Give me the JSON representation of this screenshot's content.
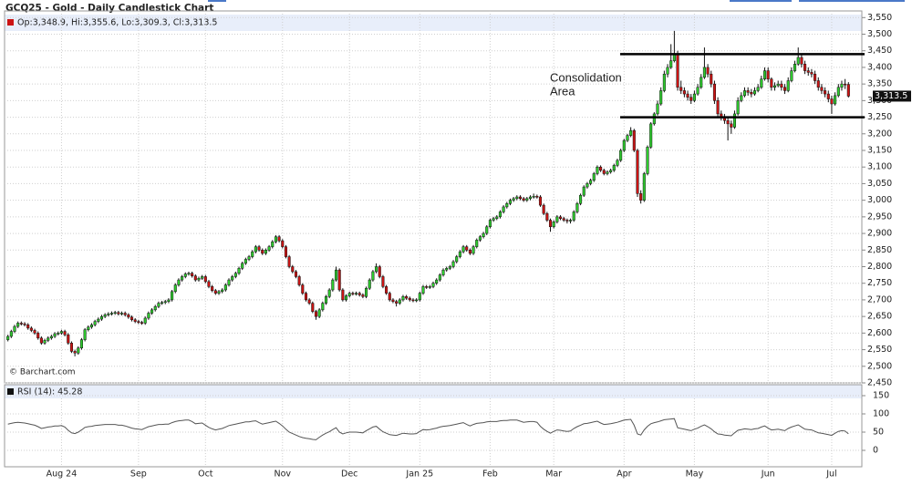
{
  "chart_data": {
    "type": "candlestick",
    "title": "GCQ25 - Gold - Daily Candlestick Chart",
    "quote": "Op:3,348.9, Hi:3,355.6, Lo:3,309.3, Cl:3,313.5",
    "source": "© Barchart.com",
    "up_color": "#2ecc2e",
    "down_color": "#cc1414",
    "grid": true,
    "ylim": [
      2450,
      3570
    ],
    "yticks": [
      {
        "value": 2450,
        "label": "2,450"
      },
      {
        "value": 2500,
        "label": "2,500"
      },
      {
        "value": 2550,
        "label": "2,550"
      },
      {
        "value": 2600,
        "label": "2,600"
      },
      {
        "value": 2650,
        "label": "2,650"
      },
      {
        "value": 2700,
        "label": "2,700"
      },
      {
        "value": 2750,
        "label": "2,750"
      },
      {
        "value": 2800,
        "label": "2,800"
      },
      {
        "value": 2850,
        "label": "2,850"
      },
      {
        "value": 2900,
        "label": "2,900"
      },
      {
        "value": 2950,
        "label": "2,950"
      },
      {
        "value": 3000,
        "label": "3,000"
      },
      {
        "value": 3050,
        "label": "3,050"
      },
      {
        "value": 3100,
        "label": "3,100"
      },
      {
        "value": 3150,
        "label": "3,150"
      },
      {
        "value": 3200,
        "label": "3,200"
      },
      {
        "value": 3250,
        "label": "3,250"
      },
      {
        "value": 3300,
        "label": "3,300"
      },
      {
        "value": 3350,
        "label": "3,350"
      },
      {
        "value": 3400,
        "label": "3,400"
      },
      {
        "value": 3450,
        "label": "3,450"
      },
      {
        "value": 3500,
        "label": "3,500"
      },
      {
        "value": 3550,
        "label": "3,550"
      }
    ],
    "xlim": [
      -1,
      255
    ],
    "xticks": [
      {
        "value": 16,
        "label": "Aug 24"
      },
      {
        "value": 39,
        "label": "Sep"
      },
      {
        "value": 59,
        "label": "Oct"
      },
      {
        "value": 82,
        "label": "Nov"
      },
      {
        "value": 102,
        "label": "Dec"
      },
      {
        "value": 123,
        "label": "Jan 25"
      },
      {
        "value": 144,
        "label": "Feb"
      },
      {
        "value": 163,
        "label": "Mar"
      },
      {
        "value": 184,
        "label": "Apr"
      },
      {
        "value": 205,
        "label": "May"
      },
      {
        "value": 227,
        "label": "Jun"
      },
      {
        "value": 246,
        "label": "Jul"
      }
    ],
    "last_price": {
      "value": 3313.5,
      "label": "3,313.5"
    },
    "annotation": {
      "text": [
        "Consolidation",
        "Area"
      ],
      "levels": [
        3440,
        3250
      ]
    },
    "open": [
      2580,
      2590,
      2605,
      2620,
      2630,
      2628,
      2625,
      2615,
      2608,
      2600,
      2585,
      2570,
      2578,
      2585,
      2590,
      2598,
      2600,
      2605,
      2595,
      2570,
      2545,
      2540,
      2555,
      2580,
      2610,
      2618,
      2625,
      2635,
      2642,
      2650,
      2655,
      2658,
      2660,
      2662,
      2658,
      2660,
      2655,
      2648,
      2640,
      2635,
      2632,
      2630,
      2645,
      2660,
      2670,
      2680,
      2690,
      2692,
      2695,
      2700,
      2725,
      2745,
      2760,
      2770,
      2778,
      2780,
      2772,
      2760,
      2765,
      2770,
      2755,
      2740,
      2728,
      2720,
      2725,
      2730,
      2745,
      2760,
      2770,
      2780,
      2795,
      2810,
      2822,
      2830,
      2845,
      2860,
      2850,
      2840,
      2850,
      2860,
      2875,
      2890,
      2878,
      2860,
      2830,
      2800,
      2785,
      2770,
      2745,
      2720,
      2700,
      2690,
      2665,
      2650,
      2670,
      2690,
      2710,
      2730,
      2760,
      2790,
      2730,
      2700,
      2712,
      2720,
      2718,
      2720,
      2715,
      2710,
      2735,
      2760,
      2785,
      2800,
      2770,
      2740,
      2720,
      2700,
      2695,
      2690,
      2700,
      2710,
      2705,
      2700,
      2698,
      2700,
      2720,
      2740,
      2738,
      2740,
      2750,
      2760,
      2775,
      2790,
      2795,
      2800,
      2815,
      2830,
      2845,
      2860,
      2850,
      2840,
      2860,
      2880,
      2890,
      2900,
      2920,
      2940,
      2945,
      2950,
      2965,
      2980,
      2990,
      3000,
      3005,
      3010,
      3005,
      3000,
      3005,
      3010,
      3012,
      3010,
      2985,
      2960,
      2940,
      2920,
      2935,
      2950,
      2945,
      2940,
      2938,
      2940,
      2965,
      2990,
      3015,
      3040,
      3050,
      3060,
      3080,
      3100,
      3090,
      3080,
      3085,
      3090,
      3105,
      3120,
      3150,
      3180,
      3195,
      3210,
      3150,
      3020,
      3000,
      3080,
      3160,
      3230,
      3260,
      3290,
      3330,
      3380,
      3400,
      3420,
      3440,
      3340,
      3330,
      3320,
      3310,
      3300,
      3320,
      3340,
      3370,
      3400,
      3380,
      3350,
      3300,
      3260,
      3250,
      3240,
      3230,
      3220,
      3260,
      3300,
      3315,
      3330,
      3325,
      3320,
      3330,
      3340,
      3365,
      3390,
      3365,
      3340,
      3345,
      3350,
      3340,
      3330,
      3360,
      3390,
      3410,
      3430,
      3410,
      3390,
      3385,
      3380,
      3360,
      3340,
      3330,
      3320,
      3305,
      3290,
      3315,
      3340,
      3350,
      3348.9
    ],
    "high": [
      2595,
      2610,
      2625,
      2635,
      2635,
      2633,
      2630,
      2620,
      2613,
      2605,
      2590,
      2583,
      2590,
      2595,
      2603,
      2605,
      2610,
      2610,
      2600,
      2575,
      2550,
      2560,
      2585,
      2615,
      2623,
      2630,
      2640,
      2647,
      2655,
      2660,
      2663,
      2665,
      2667,
      2667,
      2665,
      2665,
      2660,
      2653,
      2645,
      2640,
      2637,
      2650,
      2665,
      2675,
      2685,
      2695,
      2697,
      2700,
      2705,
      2730,
      2750,
      2765,
      2775,
      2783,
      2785,
      2785,
      2777,
      2770,
      2775,
      2775,
      2760,
      2745,
      2733,
      2730,
      2735,
      2750,
      2765,
      2775,
      2785,
      2800,
      2815,
      2827,
      2835,
      2850,
      2865,
      2865,
      2855,
      2855,
      2865,
      2880,
      2895,
      2895,
      2883,
      2865,
      2835,
      2805,
      2790,
      2775,
      2750,
      2725,
      2705,
      2695,
      2670,
      2675,
      2695,
      2715,
      2735,
      2765,
      2800,
      2795,
      2735,
      2717,
      2725,
      2725,
      2725,
      2725,
      2720,
      2740,
      2765,
      2790,
      2810,
      2805,
      2775,
      2745,
      2725,
      2705,
      2700,
      2705,
      2715,
      2715,
      2710,
      2705,
      2705,
      2725,
      2745,
      2745,
      2745,
      2755,
      2765,
      2780,
      2795,
      2800,
      2805,
      2820,
      2835,
      2850,
      2865,
      2865,
      2855,
      2865,
      2885,
      2895,
      2905,
      2925,
      2945,
      2950,
      2955,
      2970,
      2985,
      2995,
      3005,
      3010,
      3015,
      3015,
      3010,
      3010,
      3015,
      3020,
      3017,
      3015,
      2990,
      2965,
      2945,
      2940,
      2955,
      2955,
      2950,
      2945,
      2945,
      2970,
      2995,
      3020,
      3045,
      3055,
      3065,
      3085,
      3105,
      3105,
      3095,
      3090,
      3095,
      3110,
      3125,
      3155,
      3185,
      3200,
      3220,
      3215,
      3155,
      3030,
      3085,
      3165,
      3235,
      3265,
      3300,
      3340,
      3390,
      3410,
      3470,
      3510,
      3450,
      3360,
      3340,
      3330,
      3320,
      3330,
      3350,
      3380,
      3460,
      3410,
      3390,
      3360,
      3310,
      3270,
      3260,
      3250,
      3240,
      3270,
      3310,
      3325,
      3340,
      3340,
      3335,
      3340,
      3350,
      3375,
      3400,
      3400,
      3370,
      3355,
      3360,
      3360,
      3350,
      3370,
      3400,
      3420,
      3460,
      3440,
      3420,
      3400,
      3395,
      3390,
      3370,
      3350,
      3340,
      3330,
      3315,
      3325,
      3350,
      3360,
      3365,
      3355.6
    ],
    "low": [
      2575,
      2585,
      2600,
      2615,
      2623,
      2620,
      2610,
      2603,
      2595,
      2580,
      2565,
      2565,
      2573,
      2580,
      2585,
      2593,
      2595,
      2590,
      2565,
      2540,
      2530,
      2535,
      2550,
      2575,
      2605,
      2613,
      2620,
      2630,
      2637,
      2645,
      2650,
      2653,
      2655,
      2653,
      2653,
      2650,
      2643,
      2635,
      2630,
      2627,
      2625,
      2625,
      2640,
      2655,
      2665,
      2675,
      2685,
      2687,
      2690,
      2695,
      2720,
      2740,
      2755,
      2765,
      2773,
      2767,
      2755,
      2755,
      2760,
      2750,
      2735,
      2723,
      2715,
      2715,
      2720,
      2725,
      2740,
      2755,
      2765,
      2775,
      2790,
      2805,
      2817,
      2825,
      2840,
      2845,
      2835,
      2835,
      2845,
      2855,
      2870,
      2873,
      2855,
      2825,
      2795,
      2780,
      2765,
      2740,
      2715,
      2695,
      2685,
      2660,
      2640,
      2645,
      2665,
      2685,
      2705,
      2725,
      2755,
      2725,
      2695,
      2695,
      2707,
      2713,
      2713,
      2710,
      2705,
      2705,
      2730,
      2755,
      2780,
      2765,
      2735,
      2715,
      2695,
      2690,
      2680,
      2685,
      2695,
      2700,
      2695,
      2693,
      2693,
      2695,
      2715,
      2733,
      2733,
      2735,
      2745,
      2755,
      2770,
      2785,
      2790,
      2795,
      2810,
      2825,
      2840,
      2845,
      2835,
      2835,
      2855,
      2875,
      2885,
      2895,
      2915,
      2935,
      2940,
      2945,
      2960,
      2975,
      2985,
      2995,
      3000,
      3000,
      2995,
      2995,
      3000,
      3005,
      3005,
      2980,
      2955,
      2935,
      2905,
      2915,
      2930,
      2940,
      2935,
      2930,
      2930,
      2935,
      2960,
      2985,
      3010,
      3035,
      3045,
      3055,
      3075,
      3085,
      3075,
      3075,
      3080,
      3085,
      3100,
      3115,
      3145,
      3175,
      3190,
      3145,
      3010,
      2990,
      2995,
      3075,
      3155,
      3225,
      3255,
      3285,
      3325,
      3370,
      3395,
      3415,
      3330,
      3320,
      3310,
      3300,
      3290,
      3295,
      3315,
      3335,
      3365,
      3370,
      3340,
      3290,
      3250,
      3240,
      3230,
      3180,
      3200,
      3215,
      3255,
      3295,
      3310,
      3315,
      3310,
      3315,
      3325,
      3335,
      3360,
      3355,
      3330,
      3330,
      3340,
      3330,
      3320,
      3325,
      3355,
      3385,
      3405,
      3400,
      3380,
      3375,
      3370,
      3350,
      3330,
      3320,
      3310,
      3295,
      3260,
      3285,
      3310,
      3330,
      3335,
      3309.3
    ],
    "close": [
      2590,
      2605,
      2620,
      2630,
      2628,
      2625,
      2615,
      2608,
      2600,
      2585,
      2570,
      2578,
      2585,
      2590,
      2598,
      2600,
      2605,
      2595,
      2570,
      2545,
      2540,
      2555,
      2580,
      2610,
      2618,
      2625,
      2635,
      2642,
      2650,
      2655,
      2658,
      2660,
      2662,
      2658,
      2660,
      2655,
      2648,
      2640,
      2635,
      2632,
      2630,
      2645,
      2660,
      2670,
      2680,
      2690,
      2692,
      2695,
      2700,
      2725,
      2745,
      2760,
      2770,
      2778,
      2780,
      2772,
      2760,
      2765,
      2770,
      2755,
      2740,
      2728,
      2720,
      2725,
      2730,
      2745,
      2760,
      2770,
      2780,
      2795,
      2810,
      2822,
      2830,
      2845,
      2860,
      2850,
      2840,
      2850,
      2860,
      2875,
      2890,
      2878,
      2860,
      2830,
      2800,
      2785,
      2770,
      2745,
      2720,
      2700,
      2690,
      2665,
      2650,
      2670,
      2690,
      2710,
      2730,
      2760,
      2790,
      2730,
      2700,
      2712,
      2720,
      2718,
      2720,
      2715,
      2710,
      2735,
      2760,
      2785,
      2800,
      2770,
      2740,
      2720,
      2700,
      2695,
      2690,
      2700,
      2710,
      2705,
      2700,
      2698,
      2700,
      2720,
      2740,
      2738,
      2740,
      2750,
      2760,
      2775,
      2790,
      2795,
      2800,
      2815,
      2830,
      2845,
      2860,
      2850,
      2840,
      2860,
      2880,
      2890,
      2900,
      2920,
      2940,
      2945,
      2950,
      2965,
      2980,
      2990,
      3000,
      3005,
      3010,
      3005,
      3000,
      3005,
      3010,
      3012,
      3010,
      2985,
      2960,
      2940,
      2920,
      2935,
      2950,
      2945,
      2940,
      2938,
      2940,
      2965,
      2990,
      3015,
      3040,
      3050,
      3060,
      3080,
      3100,
      3090,
      3080,
      3085,
      3090,
      3105,
      3120,
      3150,
      3180,
      3195,
      3210,
      3150,
      3020,
      3000,
      3080,
      3160,
      3230,
      3260,
      3290,
      3330,
      3380,
      3400,
      3420,
      3440,
      3340,
      3330,
      3320,
      3310,
      3300,
      3320,
      3340,
      3370,
      3400,
      3380,
      3350,
      3300,
      3260,
      3250,
      3240,
      3230,
      3220,
      3260,
      3300,
      3315,
      3330,
      3325,
      3320,
      3330,
      3340,
      3365,
      3390,
      3365,
      3340,
      3345,
      3350,
      3340,
      3330,
      3360,
      3390,
      3410,
      3430,
      3410,
      3390,
      3385,
      3380,
      3360,
      3340,
      3330,
      3320,
      3305,
      3290,
      3315,
      3340,
      3350,
      3348.9,
      3313.5
    ],
    "rsi": {
      "label": "RSI (14): 45.28",
      "color": "#555555",
      "ylim": [
        -45,
        180
      ],
      "yticks": [
        0,
        50,
        100,
        150
      ],
      "values": [
        72,
        74,
        76,
        77,
        76,
        75,
        73,
        71,
        69,
        65,
        60,
        62,
        64,
        65,
        67,
        67,
        68,
        64,
        55,
        48,
        46,
        50,
        56,
        63,
        65,
        66,
        68,
        69,
        70,
        71,
        71,
        71,
        71,
        69,
        69,
        67,
        64,
        61,
        59,
        58,
        57,
        61,
        65,
        67,
        69,
        71,
        71,
        72,
        72,
        76,
        79,
        81,
        82,
        83,
        83,
        79,
        73,
        74,
        75,
        69,
        63,
        59,
        56,
        58,
        60,
        64,
        68,
        70,
        72,
        74,
        76,
        78,
        78,
        80,
        81,
        76,
        72,
        74,
        76,
        78,
        80,
        74,
        67,
        58,
        50,
        46,
        42,
        38,
        35,
        33,
        32,
        30,
        29,
        36,
        42,
        47,
        51,
        57,
        62,
        50,
        45,
        48,
        50,
        50,
        50,
        49,
        48,
        54,
        59,
        64,
        66,
        58,
        51,
        47,
        43,
        42,
        41,
        44,
        47,
        46,
        45,
        45,
        46,
        52,
        57,
        56,
        57,
        59,
        61,
        64,
        66,
        67,
        68,
        70,
        72,
        74,
        76,
        71,
        67,
        71,
        74,
        75,
        76,
        78,
        79,
        79,
        79,
        81,
        82,
        82,
        83,
        83,
        83,
        80,
        77,
        78,
        79,
        79,
        77,
        66,
        58,
        52,
        47,
        52,
        56,
        55,
        53,
        52,
        53,
        60,
        65,
        69,
        73,
        74,
        76,
        78,
        80,
        75,
        71,
        72,
        73,
        75,
        77,
        80,
        83,
        84,
        85,
        69,
        45,
        42,
        56,
        66,
        73,
        76,
        78,
        81,
        84,
        85,
        86,
        87,
        62,
        60,
        58,
        56,
        54,
        58,
        61,
        66,
        70,
        65,
        59,
        51,
        45,
        44,
        42,
        41,
        40,
        48,
        55,
        57,
        59,
        58,
        57,
        59,
        60,
        64,
        67,
        61,
        56,
        57,
        58,
        56,
        54,
        60,
        64,
        67,
        70,
        64,
        58,
        57,
        56,
        52,
        48,
        47,
        45,
        43,
        41,
        47,
        52,
        54,
        53,
        45.28
      ]
    }
  }
}
